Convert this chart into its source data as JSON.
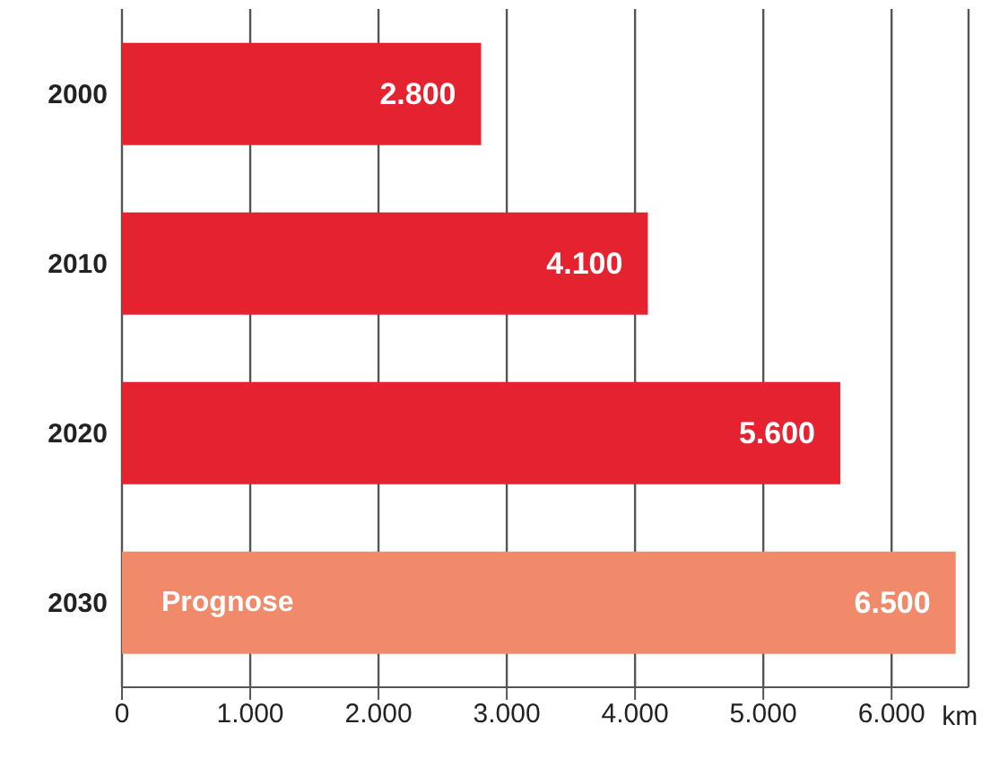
{
  "chart_data": {
    "type": "bar",
    "orientation": "horizontal",
    "categories": [
      "2000",
      "2010",
      "2020",
      "2030"
    ],
    "values": [
      2800,
      4100,
      5600,
      6500
    ],
    "colors": [
      "#e52330",
      "#e52330",
      "#e52330",
      "#f08a6a"
    ],
    "value_labels": [
      "2.800",
      "4.100",
      "5.600",
      "6.500"
    ],
    "xlabel": "km",
    "xlim": [
      0,
      6600
    ],
    "xticks": [
      0,
      {
        "value": 1000,
        "label": "1.000"
      },
      {
        "value": 2000,
        "label": "2.000"
      },
      {
        "value": 3000,
        "label": "3.000"
      },
      {
        "value": 4000,
        "label": "4.000"
      },
      {
        "value": 5000,
        "label": "5.000"
      },
      {
        "value": 6000,
        "label": "6.000"
      }
    ],
    "grid": "x",
    "annotations": [
      "Prognose"
    ]
  }
}
